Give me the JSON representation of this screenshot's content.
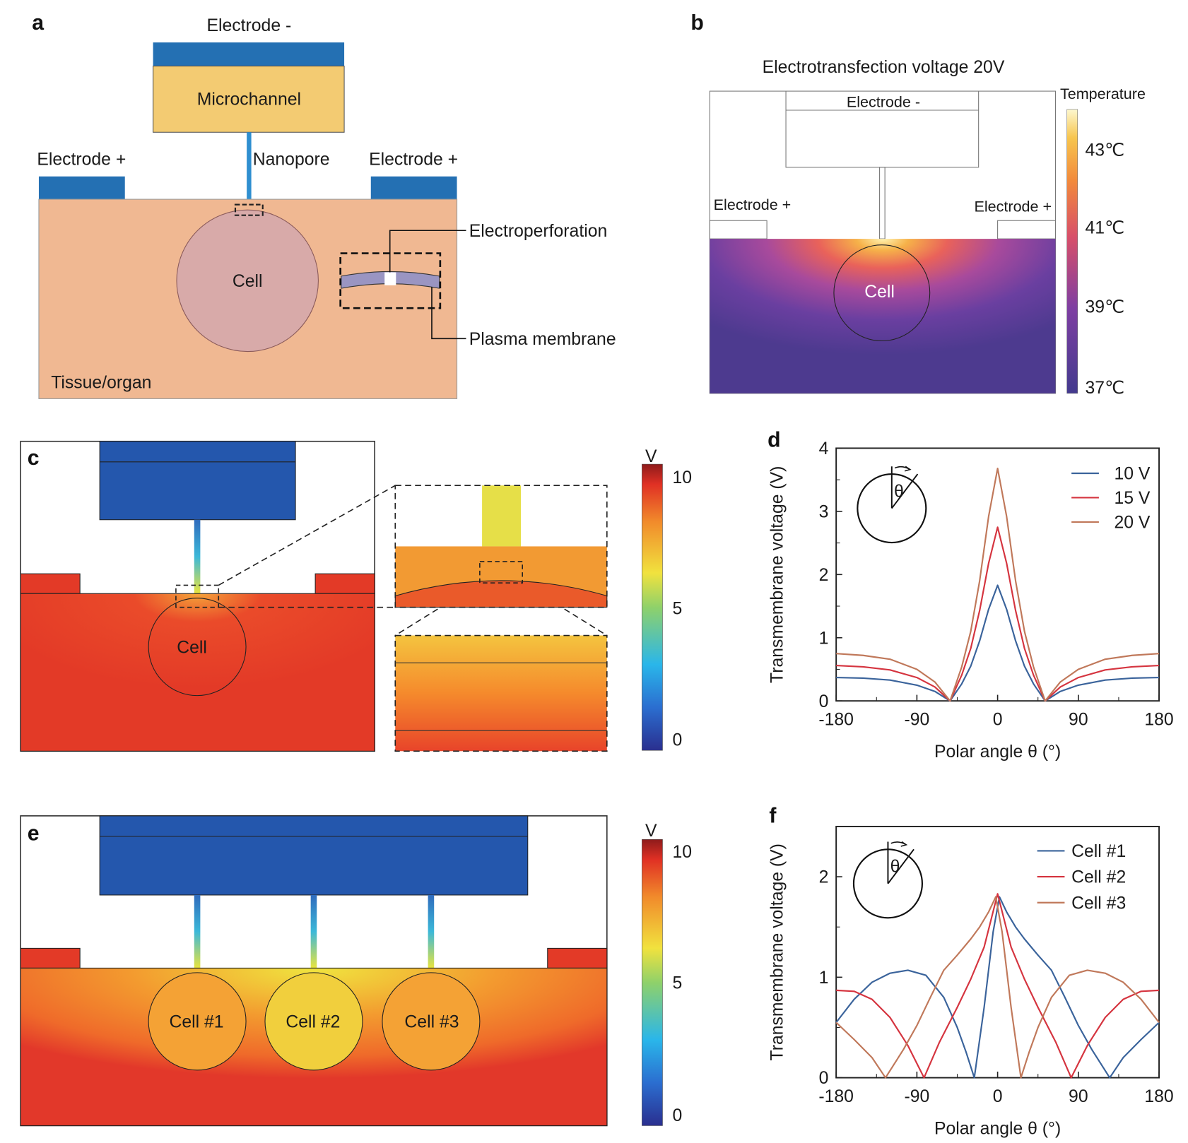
{
  "panel_a": {
    "letter": "a",
    "electrode_neg": "Electrode -",
    "microchannel": "Microchannel",
    "electrode_pos_left": "Electrode +",
    "nanopore": "Nanopore",
    "electrode_pos_right": "Electrode +",
    "electroperforation": "Electroperforation",
    "cell": "Cell",
    "plasma_membrane": "Plasma membrane",
    "tissue": "Tissue/organ",
    "colors": {
      "electrode": "#2470b3",
      "microchannel": "#f3cb72",
      "tissue": "#f0b892",
      "cell": "#d8aaa9",
      "membrane": "#9a95c2"
    }
  },
  "panel_b": {
    "letter": "b",
    "title": "Electrotransfection voltage 20V",
    "electrode_neg": "Electrode -",
    "electrode_pos_left": "Electrode +",
    "electrode_pos_right": "Electrode +",
    "cell": "Cell",
    "colorbar_title": "Temperature",
    "colorbar_ticks": [
      "43℃",
      "41℃",
      "39℃",
      "37℃"
    ]
  },
  "panel_c": {
    "letter": "c",
    "cell": "Cell",
    "colorbar_unit": "V",
    "colorbar_ticks": [
      "10",
      "5",
      "0"
    ]
  },
  "panel_e": {
    "letter": "e",
    "cells": [
      "Cell #1",
      "Cell #2",
      "Cell #3"
    ],
    "colorbar_unit": "V",
    "colorbar_ticks": [
      "10",
      "5",
      "0"
    ]
  },
  "chart_data": [
    {
      "panel": "d",
      "type": "line",
      "xlabel": "Polar angle θ (°)",
      "ylabel": "Transmembrane voltage (V)",
      "xlim": [
        -180,
        180
      ],
      "ylim": [
        0,
        4
      ],
      "xticks": [
        "-180",
        "-90",
        "0",
        "90",
        "180"
      ],
      "yticks": [
        "0",
        "1",
        "2",
        "3",
        "4"
      ],
      "inset_symbol": "θ",
      "legend_position": "top-right",
      "series": [
        {
          "name": "10 V",
          "color": "#3a639b",
          "points": [
            [
              -180,
              0.37
            ],
            [
              -150,
              0.36
            ],
            [
              -120,
              0.33
            ],
            [
              -90,
              0.25
            ],
            [
              -70,
              0.15
            ],
            [
              -53,
              0
            ],
            [
              -40,
              0.27
            ],
            [
              -30,
              0.55
            ],
            [
              -20,
              0.95
            ],
            [
              -10,
              1.45
            ],
            [
              0,
              1.83
            ],
            [
              10,
              1.45
            ],
            [
              20,
              0.95
            ],
            [
              30,
              0.55
            ],
            [
              40,
              0.27
            ],
            [
              53,
              0
            ],
            [
              70,
              0.15
            ],
            [
              90,
              0.25
            ],
            [
              120,
              0.33
            ],
            [
              150,
              0.36
            ],
            [
              180,
              0.37
            ]
          ]
        },
        {
          "name": "15 V",
          "color": "#d5343f",
          "points": [
            [
              -180,
              0.56
            ],
            [
              -150,
              0.54
            ],
            [
              -120,
              0.49
            ],
            [
              -90,
              0.37
            ],
            [
              -70,
              0.22
            ],
            [
              -53,
              0
            ],
            [
              -40,
              0.41
            ],
            [
              -30,
              0.83
            ],
            [
              -20,
              1.43
            ],
            [
              -10,
              2.18
            ],
            [
              0,
              2.75
            ],
            [
              10,
              2.18
            ],
            [
              20,
              1.43
            ],
            [
              30,
              0.83
            ],
            [
              40,
              0.41
            ],
            [
              53,
              0
            ],
            [
              70,
              0.22
            ],
            [
              90,
              0.37
            ],
            [
              120,
              0.49
            ],
            [
              150,
              0.54
            ],
            [
              180,
              0.56
            ]
          ]
        },
        {
          "name": "20 V",
          "color": "#c0785a",
          "points": [
            [
              -180,
              0.75
            ],
            [
              -150,
              0.72
            ],
            [
              -120,
              0.66
            ],
            [
              -90,
              0.5
            ],
            [
              -70,
              0.3
            ],
            [
              -53,
              0
            ],
            [
              -40,
              0.54
            ],
            [
              -30,
              1.1
            ],
            [
              -20,
              1.9
            ],
            [
              -10,
              2.92
            ],
            [
              0,
              3.68
            ],
            [
              10,
              2.92
            ],
            [
              20,
              1.9
            ],
            [
              30,
              1.1
            ],
            [
              40,
              0.54
            ],
            [
              53,
              0
            ],
            [
              70,
              0.3
            ],
            [
              90,
              0.5
            ],
            [
              120,
              0.66
            ],
            [
              150,
              0.72
            ],
            [
              180,
              0.75
            ]
          ]
        }
      ]
    },
    {
      "panel": "f",
      "type": "line",
      "xlabel": "Polar angle θ (°)",
      "ylabel": "Transmembrane voltage (V)",
      "xlim": [
        -180,
        180
      ],
      "ylim": [
        0,
        2.5
      ],
      "xticks": [
        "-180",
        "-90",
        "0",
        "90",
        "180"
      ],
      "yticks": [
        "0",
        "1",
        "2"
      ],
      "inset_symbol": "θ",
      "legend_position": "top-right",
      "series": [
        {
          "name": "Cell #1",
          "color": "#3a639b",
          "points": [
            [
              -180,
              0.55
            ],
            [
              -160,
              0.78
            ],
            [
              -140,
              0.95
            ],
            [
              -120,
              1.04
            ],
            [
              -100,
              1.07
            ],
            [
              -80,
              1.02
            ],
            [
              -60,
              0.8
            ],
            [
              -45,
              0.5
            ],
            [
              -35,
              0.25
            ],
            [
              -26,
              0
            ],
            [
              -15,
              0.7
            ],
            [
              -5,
              1.45
            ],
            [
              2,
              1.8
            ],
            [
              10,
              1.65
            ],
            [
              20,
              1.5
            ],
            [
              30,
              1.38
            ],
            [
              45,
              1.22
            ],
            [
              60,
              1.07
            ],
            [
              75,
              0.8
            ],
            [
              90,
              0.52
            ],
            [
              105,
              0.28
            ],
            [
              125,
              0
            ],
            [
              140,
              0.2
            ],
            [
              160,
              0.38
            ],
            [
              180,
              0.55
            ]
          ]
        },
        {
          "name": "Cell #2",
          "color": "#d5343f",
          "points": [
            [
              -180,
              0.87
            ],
            [
              -160,
              0.86
            ],
            [
              -140,
              0.78
            ],
            [
              -120,
              0.6
            ],
            [
              -100,
              0.32
            ],
            [
              -82,
              0
            ],
            [
              -65,
              0.35
            ],
            [
              -45,
              0.7
            ],
            [
              -30,
              0.98
            ],
            [
              -15,
              1.3
            ],
            [
              0,
              1.83
            ],
            [
              15,
              1.3
            ],
            [
              30,
              0.98
            ],
            [
              45,
              0.7
            ],
            [
              65,
              0.35
            ],
            [
              82,
              0
            ],
            [
              100,
              0.32
            ],
            [
              120,
              0.6
            ],
            [
              140,
              0.78
            ],
            [
              160,
              0.86
            ],
            [
              180,
              0.87
            ]
          ]
        },
        {
          "name": "Cell #3",
          "color": "#c0785a",
          "points": [
            [
              -180,
              0.55
            ],
            [
              -160,
              0.38
            ],
            [
              -140,
              0.2
            ],
            [
              -125,
              0
            ],
            [
              -105,
              0.28
            ],
            [
              -90,
              0.52
            ],
            [
              -75,
              0.8
            ],
            [
              -60,
              1.07
            ],
            [
              -45,
              1.22
            ],
            [
              -30,
              1.38
            ],
            [
              -20,
              1.5
            ],
            [
              -10,
              1.65
            ],
            [
              -2,
              1.8
            ],
            [
              5,
              1.45
            ],
            [
              15,
              0.7
            ],
            [
              26,
              0
            ],
            [
              35,
              0.25
            ],
            [
              45,
              0.5
            ],
            [
              60,
              0.8
            ],
            [
              80,
              1.02
            ],
            [
              100,
              1.07
            ],
            [
              120,
              1.04
            ],
            [
              140,
              0.95
            ],
            [
              160,
              0.78
            ],
            [
              180,
              0.55
            ]
          ]
        }
      ]
    }
  ]
}
